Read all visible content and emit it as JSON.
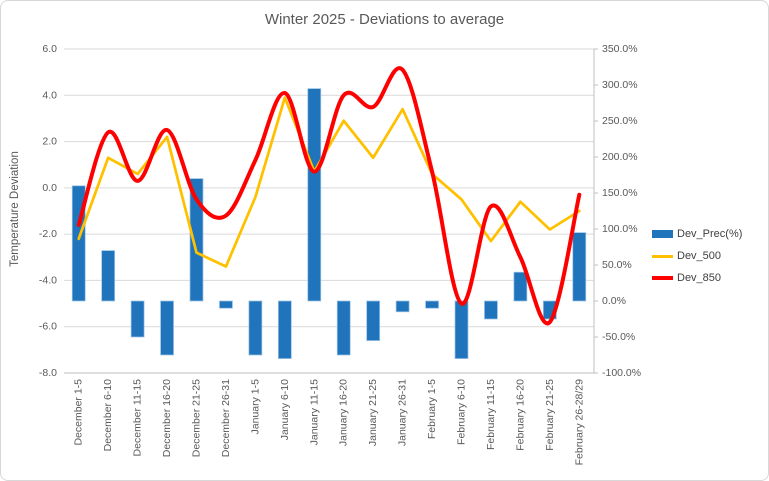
{
  "title": "Winter 2025 - Deviations to average",
  "left_axis": {
    "label": "Temperature Deviation",
    "tick_labels": [
      "6.0",
      "4.0",
      "2.0",
      "0.0",
      "-2.0",
      "-4.0",
      "-6.0",
      "-8.0"
    ],
    "tick_values": [
      6,
      4,
      2,
      0,
      -2,
      -4,
      -6,
      -8
    ]
  },
  "right_axis": {
    "tick_labels": [
      "350.0%",
      "300.0%",
      "250.0%",
      "200.0%",
      "150.0%",
      "100.0%",
      "50.0%",
      "0.0%",
      "-50.0%",
      "-100.0%"
    ],
    "tick_values": [
      350,
      300,
      250,
      200,
      150,
      100,
      50,
      0,
      -50,
      -100
    ]
  },
  "colors": {
    "bar_fill": "#1f74bc",
    "bar_edge": "#9dc3e6",
    "line_500": "#ffc000",
    "line_850": "#ff0000",
    "gridline": "#d9d9d9",
    "axis_line": "#bfbfbf",
    "text": "#595959"
  },
  "chart_data": {
    "type": "bar",
    "subtype": "combo-bar-lines",
    "title": "Winter 2025 - Deviations to average",
    "xlabel": "",
    "ylabel": "Temperature Deviation",
    "grid": true,
    "legend_position": "right",
    "left_axis_range": [
      -8,
      6
    ],
    "right_axis_range": [
      -100,
      350
    ],
    "categories": [
      "December 1-5",
      "December 6-10",
      "December 11-15",
      "December 16-20",
      "December 21-25",
      "December 26-31",
      "January 1-5",
      "January 6-10",
      "January 11-15",
      "January 16-20",
      "January 21-25",
      "January 26-31",
      "February 1-5",
      "February 6-10",
      "February 11-15",
      "February 16-20",
      "February 21-25",
      "February 26-28/29"
    ],
    "series": [
      {
        "name": "Dev_Prec(%)",
        "type": "bar",
        "axis": "right",
        "unit": "%",
        "smooth": false,
        "values": [
          160,
          70,
          -50,
          -75,
          170,
          -10,
          -75,
          -80,
          295,
          -75,
          -55,
          -15,
          -10,
          -80,
          -25,
          40,
          -25,
          95
        ]
      },
      {
        "name": "Dev_500",
        "type": "line",
        "axis": "left",
        "unit": "deg",
        "smooth": false,
        "values": [
          -2.2,
          1.3,
          0.6,
          2.2,
          -2.8,
          -3.4,
          -0.4,
          3.9,
          0.7,
          2.9,
          1.3,
          3.4,
          0.6,
          -0.5,
          -2.3,
          -0.6,
          -1.8,
          -1.0
        ]
      },
      {
        "name": "Dev_850",
        "type": "line",
        "axis": "left",
        "unit": "deg",
        "smooth": true,
        "values": [
          -1.6,
          2.4,
          0.3,
          2.5,
          -0.5,
          -1.2,
          1.2,
          4.1,
          0.7,
          4.0,
          3.5,
          5.1,
          0.7,
          -5.0,
          -0.8,
          -3.0,
          -5.8,
          -0.3
        ]
      }
    ]
  }
}
